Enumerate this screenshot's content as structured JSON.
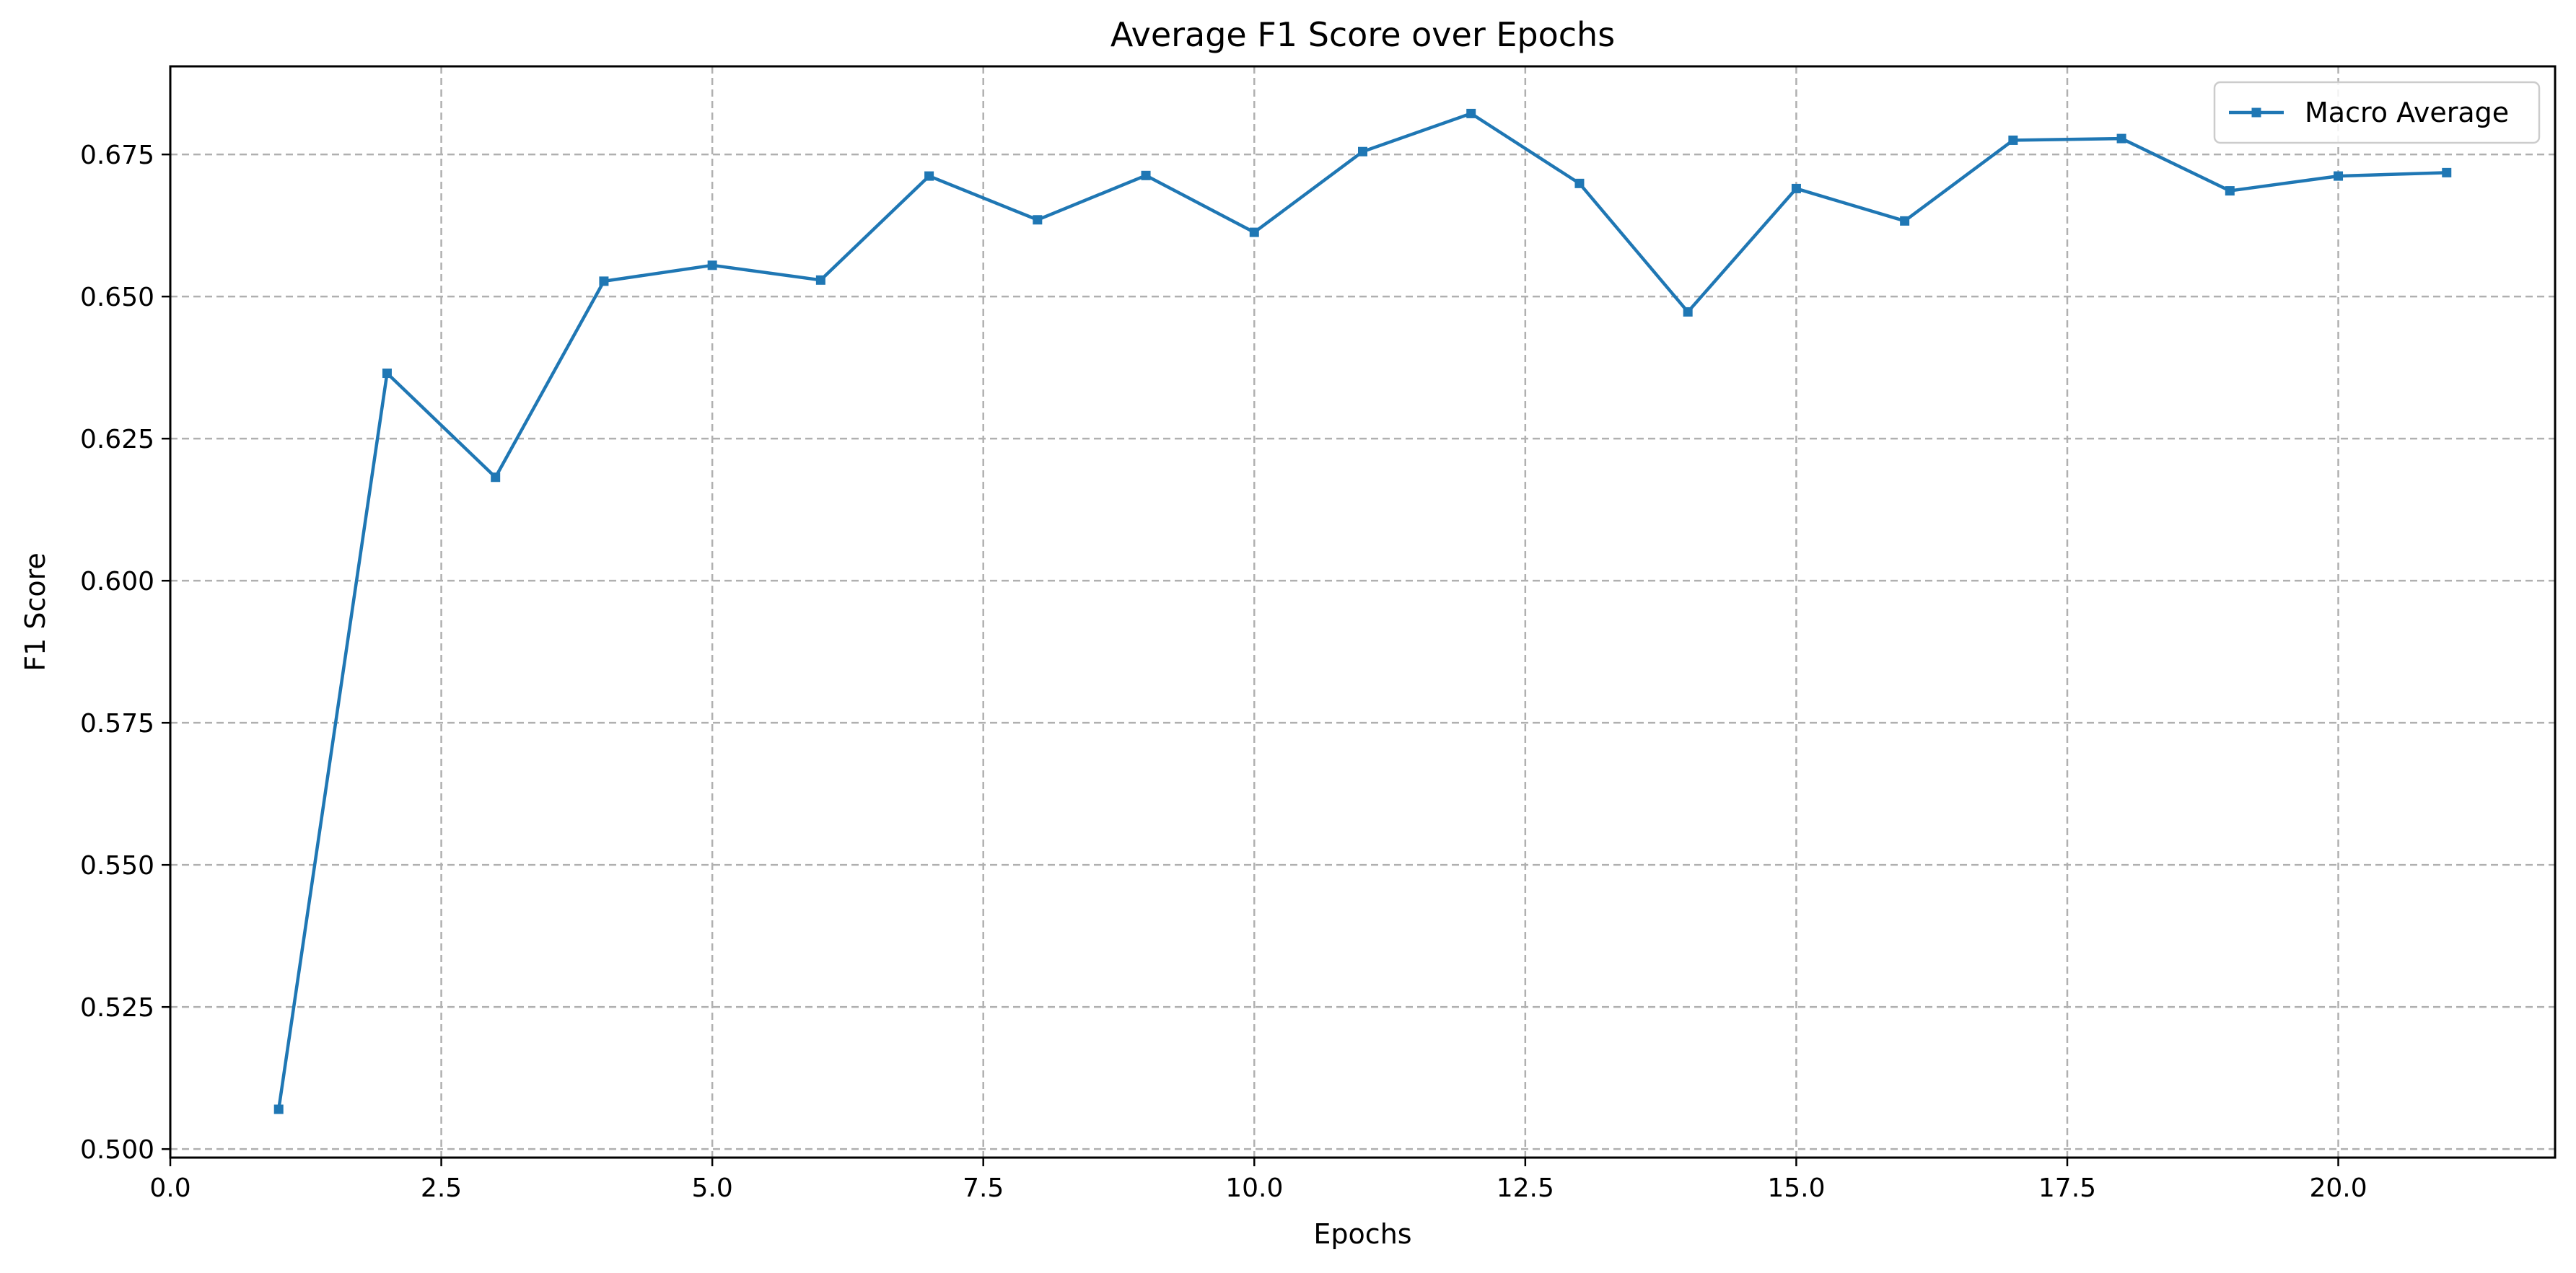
{
  "chart_data": {
    "type": "line",
    "title": "Average F1 Score over Epochs",
    "xlabel": "Epochs",
    "ylabel": "F1 Score",
    "xlim": [
      0,
      22
    ],
    "ylim": [
      0.4985,
      0.6905
    ],
    "x_ticks": [
      0.0,
      2.5,
      5.0,
      7.5,
      10.0,
      12.5,
      15.0,
      17.5,
      20.0
    ],
    "x_tick_labels": [
      "0.0",
      "2.5",
      "5.0",
      "7.5",
      "10.0",
      "12.5",
      "15.0",
      "17.5",
      "20.0"
    ],
    "y_ticks": [
      0.5,
      0.525,
      0.55,
      0.575,
      0.6,
      0.625,
      0.65,
      0.675
    ],
    "y_tick_labels": [
      "0.500",
      "0.525",
      "0.550",
      "0.575",
      "0.600",
      "0.625",
      "0.650",
      "0.675"
    ],
    "grid": true,
    "legend_position": "top-right",
    "series": [
      {
        "name": "Macro Average",
        "color": "#1f77b4",
        "marker": "square",
        "x": [
          1,
          2,
          3,
          4,
          5,
          6,
          7,
          8,
          9,
          10,
          11,
          12,
          13,
          14,
          15,
          16,
          17,
          18,
          19,
          20,
          21
        ],
        "values": [
          0.507,
          0.6365,
          0.6182,
          0.6527,
          0.6555,
          0.6529,
          0.6712,
          0.6635,
          0.6713,
          0.6613,
          0.6755,
          0.6822,
          0.6699,
          0.6473,
          0.669,
          0.6633,
          0.6775,
          0.6778,
          0.6686,
          0.6712,
          0.6718
        ]
      }
    ]
  }
}
